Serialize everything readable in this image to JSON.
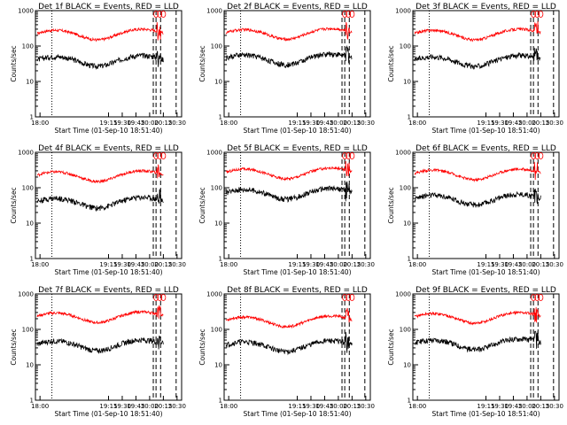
{
  "chart_data": {
    "type": "line",
    "layout": "3x3 grid",
    "y_scale": "log",
    "ylim": [
      1,
      1000
    ],
    "y_tick_labels": [
      "1",
      "10",
      "100",
      "1000"
    ],
    "x_tick_labels": [
      "18:00",
      "19:15",
      "19:30",
      "19:45",
      "20:00",
      "20:15",
      "20:30"
    ],
    "xlabel": "Start Time (01-Sep-10 18:51:40)",
    "ylabel": "Counts/sec",
    "grid": false,
    "colors": {
      "events": "#000000",
      "lld": "#ff0000"
    },
    "panels": [
      {
        "title": "Det 1f BLACK = Events, RED = LLD",
        "lld_base": 250,
        "events_base": 45
      },
      {
        "title": "Det 2f BLACK = Events, RED = LLD",
        "lld_base": 260,
        "events_base": 50
      },
      {
        "title": "Det 3f BLACK = Events, RED = LLD",
        "lld_base": 250,
        "events_base": 45
      },
      {
        "title": "Det 4f BLACK = Events, RED = LLD",
        "lld_base": 250,
        "events_base": 45
      },
      {
        "title": "Det 5f BLACK = Events, RED = LLD",
        "lld_base": 300,
        "events_base": 80
      },
      {
        "title": "Det 6f BLACK = Events, RED = LLD",
        "lld_base": 280,
        "events_base": 55
      },
      {
        "title": "Det 7f BLACK = Events, RED = LLD",
        "lld_base": 260,
        "events_base": 42
      },
      {
        "title": "Det 8f BLACK = Events, RED = LLD",
        "lld_base": 200,
        "events_base": 40
      },
      {
        "title": "Det 9f BLACK = Events, RED = LLD",
        "lld_base": 250,
        "events_base": 45
      }
    ]
  }
}
